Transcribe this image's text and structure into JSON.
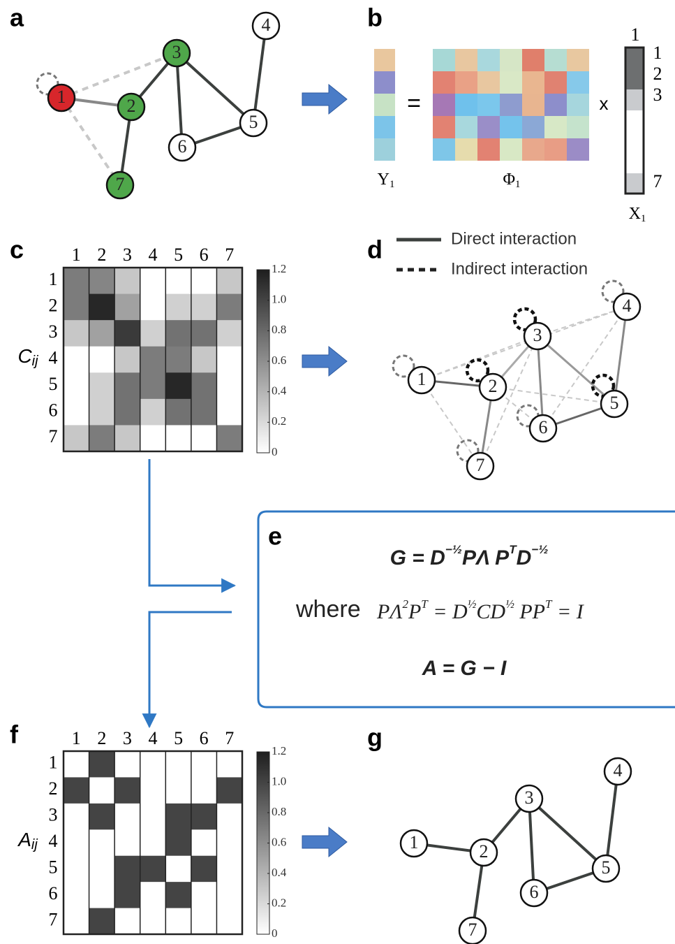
{
  "panel_labels": [
    "a",
    "b",
    "c",
    "d",
    "e",
    "f",
    "g"
  ],
  "graph_a": {
    "nodes": [
      {
        "label": "1",
        "color": "#d7262b"
      },
      {
        "label": "2",
        "color": "#4fa74a"
      },
      {
        "label": "3",
        "color": "#4fa74a"
      },
      {
        "label": "4",
        "color": "#ffffff"
      },
      {
        "label": "5",
        "color": "#ffffff"
      },
      {
        "label": "6",
        "color": "#ffffff"
      },
      {
        "label": "7",
        "color": "#4fa74a"
      }
    ]
  },
  "panel_b": {
    "equals": "=",
    "times": "x",
    "y_label": {
      "main": "Y",
      "sub": "1"
    },
    "phi_label": {
      "main": "Φ",
      "sub": "1"
    },
    "x_label": {
      "main": "X",
      "sub": "1"
    },
    "x_top": "1",
    "x_rows": [
      "1",
      "2",
      "3",
      "7"
    ]
  },
  "matrix_c": {
    "symbol": {
      "main": "C",
      "sub": "ij"
    },
    "columns": [
      "1",
      "2",
      "3",
      "4",
      "5",
      "6",
      "7"
    ],
    "rows": [
      "1",
      "2",
      "3",
      "4",
      "5",
      "6",
      "7"
    ],
    "values": [
      [
        0.7,
        0.65,
        0.3,
        0,
        0,
        0,
        0.3
      ],
      [
        0.7,
        1.15,
        0.5,
        0,
        0.25,
        0.25,
        0.7
      ],
      [
        0.3,
        0.5,
        1.05,
        0.25,
        0.75,
        0.75,
        0.25
      ],
      [
        0,
        0,
        0.3,
        0.7,
        0.7,
        0.3,
        0
      ],
      [
        0,
        0.25,
        0.75,
        0.7,
        1.15,
        0.75,
        0
      ],
      [
        0,
        0.25,
        0.75,
        0.25,
        0.75,
        0.75,
        0
      ],
      [
        0.3,
        0.7,
        0.3,
        0,
        0,
        0,
        0.7
      ]
    ],
    "clim": [
      0,
      1.2
    ],
    "cticks": [
      {
        "value": 1.2,
        "label": "1.2"
      },
      {
        "value": 1.0,
        "label": "1.0"
      },
      {
        "value": 0.8,
        "label": "0.8"
      },
      {
        "value": 0.6,
        "label": "0.6"
      },
      {
        "value": 0.4,
        "label": "0.4"
      },
      {
        "value": 0.2,
        "label": "0.2"
      },
      0
    ]
  },
  "legend_d": [
    "Direct interaction",
    "Indirect interaction"
  ],
  "graph_d": {
    "nodes": [
      {
        "label": "1"
      },
      {
        "label": "2"
      },
      {
        "label": "3"
      },
      {
        "label": "4"
      },
      {
        "label": "5"
      },
      {
        "label": "6"
      },
      {
        "label": "7"
      }
    ]
  },
  "equations": [
    {
      "parts": [
        {
          "text": "G = D",
          "sup": false
        },
        {
          "text": "−½",
          "sup": true
        },
        {
          "text": "PΛ P",
          "sup": false
        },
        {
          "text": "T",
          "sup": true
        },
        {
          "text": "D",
          "sup": false
        },
        {
          "text": "−½",
          "sup": true
        }
      ]
    },
    {
      "parts": [
        {
          "text": "PΛ",
          "sup": false
        },
        {
          "text": "2",
          "sup": true
        },
        {
          "text": "P",
          "sup": false
        },
        {
          "text": "T",
          "sup": true
        },
        {
          "text": " = D",
          "sup": false
        },
        {
          "text": "½",
          "sup": true
        },
        {
          "text": "CD",
          "sup": false
        },
        {
          "text": "½",
          "sup": true
        },
        {
          "text": "   PP",
          "sup": false
        },
        {
          "text": "T",
          "sup": true
        },
        {
          "text": " = I",
          "sup": false
        }
      ]
    },
    {
      "parts": [
        {
          "text": "A = G − I",
          "sup": false
        }
      ]
    }
  ],
  "where": "where",
  "matrix_a": {
    "symbol": {
      "main": "A",
      "sub": "ij"
    },
    "columns": [
      "1",
      "2",
      "3",
      "4",
      "5",
      "6",
      "7"
    ],
    "rows": [
      "1",
      "2",
      "3",
      "4",
      "5",
      "6",
      "7"
    ],
    "values": [
      [
        0,
        1,
        0,
        0,
        0,
        0,
        0
      ],
      [
        1,
        0,
        1,
        0,
        0,
        0,
        1
      ],
      [
        0,
        1,
        0,
        0,
        1,
        1,
        0
      ],
      [
        0,
        0,
        0,
        0,
        1,
        0,
        0
      ],
      [
        0,
        0,
        1,
        1,
        0,
        1,
        0
      ],
      [
        0,
        0,
        1,
        0,
        1,
        0,
        0
      ],
      [
        0,
        1,
        0,
        0,
        0,
        0,
        0
      ]
    ],
    "clim": [
      0,
      1.2
    ],
    "cticks": [
      {
        "value": 1.2,
        "label": "1.2"
      },
      {
        "value": 1.0,
        "label": "1.0"
      },
      {
        "value": 0.8,
        "label": "0.8"
      },
      {
        "value": 0.6,
        "label": "0.6"
      },
      {
        "value": 0.4,
        "label": "0.4"
      },
      {
        "value": 0.2,
        "label": "0.2"
      },
      0
    ]
  },
  "graph_g": {
    "nodes": [
      {
        "label": "1"
      },
      {
        "label": "2"
      },
      {
        "label": "3"
      },
      {
        "label": "4"
      },
      {
        "label": "5"
      },
      {
        "label": "6"
      },
      {
        "label": "7"
      }
    ]
  }
}
